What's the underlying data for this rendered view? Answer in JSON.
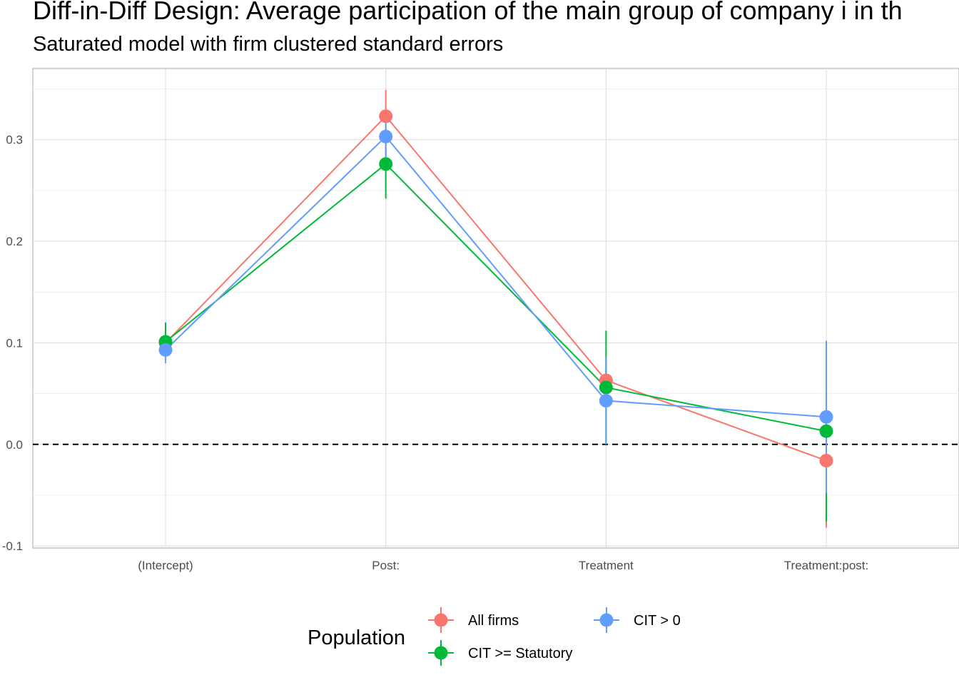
{
  "chart_data": {
    "type": "line",
    "title": "Diff-in-Diff Design: Average participation of the main group of company i in th",
    "subtitle": "Saturated model with firm clustered standard errors",
    "xlabel": "",
    "ylabel": "",
    "categories": [
      "(Intercept)",
      "Post:",
      "Treatment",
      "Treatment:post:"
    ],
    "ylim": [
      -0.102,
      0.37
    ],
    "y_ticks": [
      -0.1,
      0.0,
      0.1,
      0.2,
      0.3
    ],
    "y_tick_labels": [
      "-0.1",
      "0.0",
      "0.1",
      "0.2",
      "0.3"
    ],
    "grid": true,
    "reference_line": {
      "y": 0,
      "style": "dashed"
    },
    "legend": {
      "title": "Population",
      "position": "bottom"
    },
    "series": [
      {
        "name": "All firms",
        "color": "#F8766D",
        "values": [
          0.1,
          0.323,
          0.063,
          -0.016
        ],
        "lower": [
          0.087,
          0.296,
          0.04,
          -0.082
        ],
        "upper": [
          0.113,
          0.349,
          0.086,
          0.05
        ]
      },
      {
        "name": "CIT >= Statutory",
        "color": "#00BA38",
        "values": [
          0.101,
          0.276,
          0.056,
          0.013
        ],
        "lower": [
          0.082,
          0.242,
          0.0,
          -0.076
        ],
        "upper": [
          0.12,
          0.31,
          0.112,
          0.102
        ]
      },
      {
        "name": "CIT > 0",
        "color": "#619CFF",
        "values": [
          0.093,
          0.303,
          0.043,
          0.027
        ],
        "lower": [
          0.08,
          0.28,
          0.0,
          -0.048
        ],
        "upper": [
          0.106,
          0.326,
          0.086,
          0.102
        ]
      }
    ]
  }
}
